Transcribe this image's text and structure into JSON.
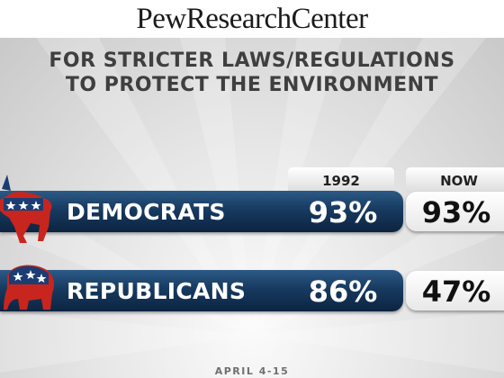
{
  "brand": "PewResearchCenter",
  "title_lines": [
    "FOR STRICTER LAWS/REGULATIONS",
    "TO PROTECT THE ENVIRONMENT"
  ],
  "footer": "APRIL 4-15",
  "colors": {
    "bar_blue": "#173a60",
    "democrat_red": "#c8251f",
    "republican_red": "#c8251f"
  },
  "chart_data": {
    "type": "table",
    "title": "FOR STRICTER LAWS/REGULATIONS TO PROTECT THE ENVIRONMENT",
    "columns": [
      "1992",
      "NOW"
    ],
    "rows": [
      {
        "label": "DEMOCRATS",
        "values": [
          93,
          93
        ],
        "display": [
          "93%",
          "93%"
        ],
        "icon": "donkey-icon"
      },
      {
        "label": "REPUBLICANS",
        "values": [
          86,
          47
        ],
        "display": [
          "86%",
          "47%"
        ],
        "icon": "elephant-icon"
      }
    ],
    "unit": "%"
  }
}
